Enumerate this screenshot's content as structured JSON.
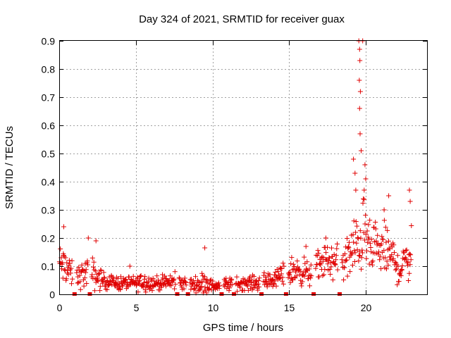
{
  "chart_data": {
    "type": "scatter",
    "title": "Day 324 of 2021, SRMTID for receiver guax",
    "xlabel": "GPS time / hours",
    "ylabel": "SRMTID / TECUs",
    "xlim": [
      0,
      24
    ],
    "ylim": [
      0,
      0.9
    ],
    "x_ticks": [
      0,
      5,
      10,
      15,
      20
    ],
    "x_tick_labels": [
      "0",
      "5",
      "10",
      "15",
      "20"
    ],
    "y_ticks": [
      0,
      0.1,
      0.2,
      0.3,
      0.4,
      0.5,
      0.6,
      0.7,
      0.8,
      0.9
    ],
    "y_tick_labels": [
      "0",
      "0.1",
      "0.2",
      "0.3",
      "0.4",
      "0.5",
      "0.6",
      "0.7",
      "0.8",
      "0.9"
    ],
    "grid": true,
    "marker": "plus",
    "color": "#e00000",
    "data_gap_markers_x": [
      1.0,
      2.0,
      7.7,
      8.4,
      10.6,
      11.4,
      13.2,
      14.8,
      16.6,
      18.3
    ],
    "envelope_x": [
      0,
      0.5,
      1,
      1.5,
      2,
      2.5,
      3,
      4,
      5,
      5.5,
      6,
      7,
      7.5,
      8,
      9,
      9.5,
      10,
      11,
      12,
      13,
      14,
      14.5,
      15,
      15.5,
      16,
      16.5,
      17,
      17.5,
      18,
      18.5,
      19,
      19.3,
      19.6,
      19.8,
      20,
      20.3,
      20.6,
      21,
      21.4,
      21.8,
      22.2,
      22.6,
      23
    ],
    "envelope_median": [
      0.11,
      0.09,
      0.06,
      0.07,
      0.08,
      0.06,
      0.045,
      0.04,
      0.04,
      0.045,
      0.04,
      0.04,
      0.045,
      0.04,
      0.035,
      0.04,
      0.03,
      0.035,
      0.04,
      0.04,
      0.05,
      0.07,
      0.08,
      0.085,
      0.08,
      0.07,
      0.11,
      0.12,
      0.11,
      0.12,
      0.14,
      0.16,
      0.19,
      0.22,
      0.2,
      0.16,
      0.15,
      0.16,
      0.15,
      0.13,
      0.08,
      0.12,
      0.16
    ],
    "envelope_spread": [
      0.06,
      0.05,
      0.03,
      0.04,
      0.05,
      0.04,
      0.02,
      0.02,
      0.02,
      0.03,
      0.02,
      0.02,
      0.025,
      0.02,
      0.02,
      0.04,
      0.015,
      0.02,
      0.02,
      0.02,
      0.025,
      0.03,
      0.04,
      0.04,
      0.04,
      0.03,
      0.05,
      0.05,
      0.05,
      0.06,
      0.08,
      0.1,
      0.1,
      0.1,
      0.08,
      0.07,
      0.07,
      0.08,
      0.07,
      0.06,
      0.04,
      0.06,
      0.08
    ],
    "notable_points": [
      {
        "x": 0.3,
        "y": 0.24
      },
      {
        "x": 1.9,
        "y": 0.2
      },
      {
        "x": 2.4,
        "y": 0.19
      },
      {
        "x": 9.5,
        "y": 0.165
      },
      {
        "x": 16.1,
        "y": 0.17
      },
      {
        "x": 17.4,
        "y": 0.2
      },
      {
        "x": 19.2,
        "y": 0.48
      },
      {
        "x": 19.3,
        "y": 0.43
      },
      {
        "x": 19.35,
        "y": 0.37
      },
      {
        "x": 19.55,
        "y": 0.9
      },
      {
        "x": 19.6,
        "y": 0.87
      },
      {
        "x": 19.62,
        "y": 0.83
      },
      {
        "x": 19.58,
        "y": 0.76
      },
      {
        "x": 19.65,
        "y": 0.72
      },
      {
        "x": 19.6,
        "y": 0.66
      },
      {
        "x": 19.63,
        "y": 0.57
      },
      {
        "x": 19.7,
        "y": 0.51
      },
      {
        "x": 19.8,
        "y": 0.9
      },
      {
        "x": 19.95,
        "y": 0.46
      },
      {
        "x": 20.0,
        "y": 0.41
      },
      {
        "x": 19.9,
        "y": 0.37
      },
      {
        "x": 21.2,
        "y": 0.3
      },
      {
        "x": 21.5,
        "y": 0.35
      },
      {
        "x": 22.85,
        "y": 0.37
      },
      {
        "x": 22.9,
        "y": 0.33
      }
    ]
  }
}
